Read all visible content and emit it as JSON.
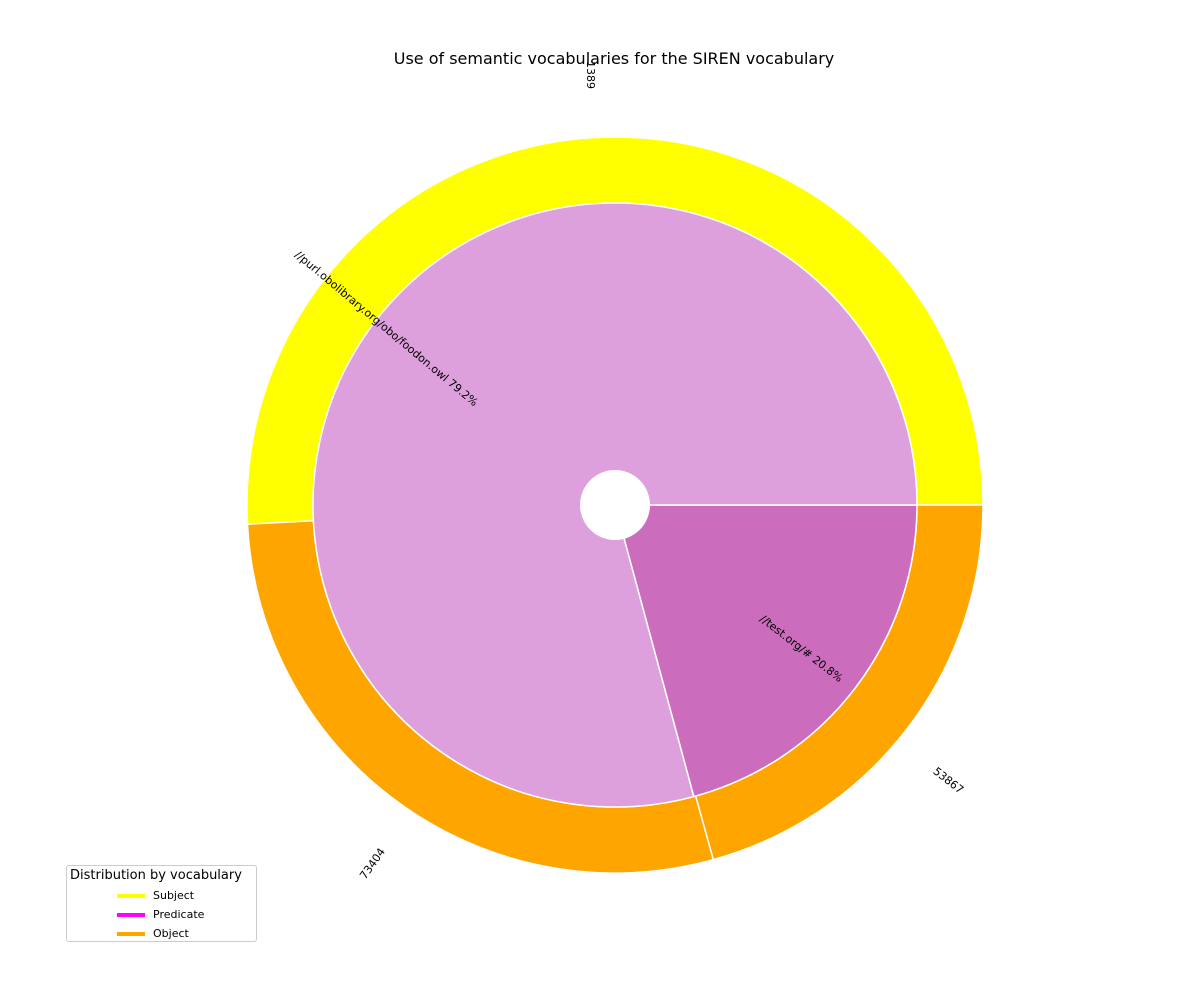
{
  "chart_data": {
    "type": "pie",
    "title": "Use of semantic vocabularies for the SIREN vocabulary",
    "outer_ring": {
      "segments": [
        {
          "name": "Subject",
          "value": 1389,
          "label": "1389",
          "color": "#ffff00"
        },
        {
          "name": "Object",
          "value": 127271,
          "color": "#ffa500",
          "sub_labels": [
            "53867",
            "73404"
          ]
        }
      ]
    },
    "inner_pie": {
      "slices": [
        {
          "label": "//purl.obolibrary.org/obo/foodon.owl  79.2%",
          "percent": 79.2,
          "color": "#dda0dd"
        },
        {
          "label": "//test.org/#  20.8%",
          "percent": 20.8,
          "color": "#cc6cbd"
        }
      ]
    },
    "legend": {
      "title": "Distribution by vocabulary",
      "location": "lower-left",
      "items": [
        {
          "label": "Subject",
          "color": "#ffff00"
        },
        {
          "label": "Predicate",
          "color": "#ff00ff"
        },
        {
          "label": "Object",
          "color": "#ffa500"
        }
      ]
    }
  }
}
